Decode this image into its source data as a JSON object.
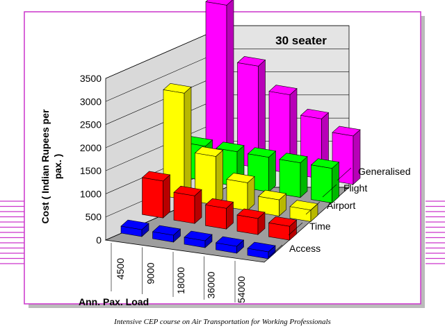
{
  "footer": "Intensive CEP course on Air Transportation for Working  Professionals",
  "colors": {
    "frame": "#cc33cc",
    "stripes": "#cc33cc"
  },
  "chart_data": {
    "type": "bar3d",
    "title": "30 seater",
    "xlabel": "Ann. Pax. Load",
    "ylabel": "Cost  ( Indian Rupees per pax. )",
    "ylim": [
      0,
      3500
    ],
    "yticks": [
      "0",
      "500",
      "1000",
      "1500",
      "2000",
      "2500",
      "3000",
      "3500"
    ],
    "categories": [
      "4500",
      "9000",
      "18000",
      "36000",
      "54000"
    ],
    "series": [
      {
        "name": "Access",
        "color": "#0000ff",
        "values": [
          150,
          150,
          150,
          150,
          150
        ]
      },
      {
        "name": "Time",
        "color": "#ff0000",
        "values": [
          800,
          600,
          450,
          350,
          300
        ]
      },
      {
        "name": "Airport",
        "color": "#ffff00",
        "values": [
          2300,
          1050,
          600,
          350,
          250
        ]
      },
      {
        "name": "Flight",
        "color": "#00ff00",
        "values": [
          750,
          750,
          750,
          750,
          750
        ]
      },
      {
        "name": "Generalised",
        "color": "#ff00ff",
        "values": [
          3400,
          2200,
          1700,
          1300,
          1050
        ]
      }
    ]
  }
}
